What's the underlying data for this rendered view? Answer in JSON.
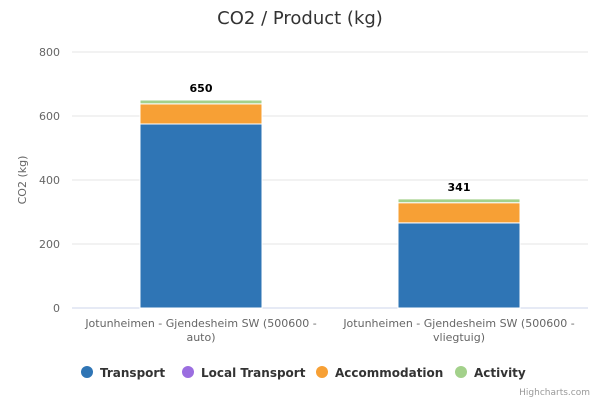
{
  "chart_data": {
    "type": "bar",
    "stacked": true,
    "title": "CO2 / Product (kg)",
    "ylabel": "CO2 (kg)",
    "ylim": [
      0,
      800
    ],
    "yticks": [
      0,
      200,
      400,
      600,
      800
    ],
    "categories": [
      [
        "Jotunheimen - Gjendesheim SW (500600 -",
        "auto)"
      ],
      [
        "Jotunheimen - Gjendesheim SW (500600 -",
        "vliegtuig)"
      ]
    ],
    "series": [
      {
        "name": "Transport",
        "color": "#2f75b5",
        "values": [
          575,
          266
        ]
      },
      {
        "name": "Local Transport",
        "color": "#9b6ee0",
        "values": [
          0,
          0
        ]
      },
      {
        "name": "Accommodation",
        "color": "#f7a035",
        "values": [
          63,
          63
        ]
      },
      {
        "name": "Activity",
        "color": "#a3d18b",
        "values": [
          12,
          12
        ]
      }
    ],
    "totals": [
      650,
      341
    ],
    "grid": true,
    "legend": "bottom"
  },
  "credits": "Highcharts.com"
}
